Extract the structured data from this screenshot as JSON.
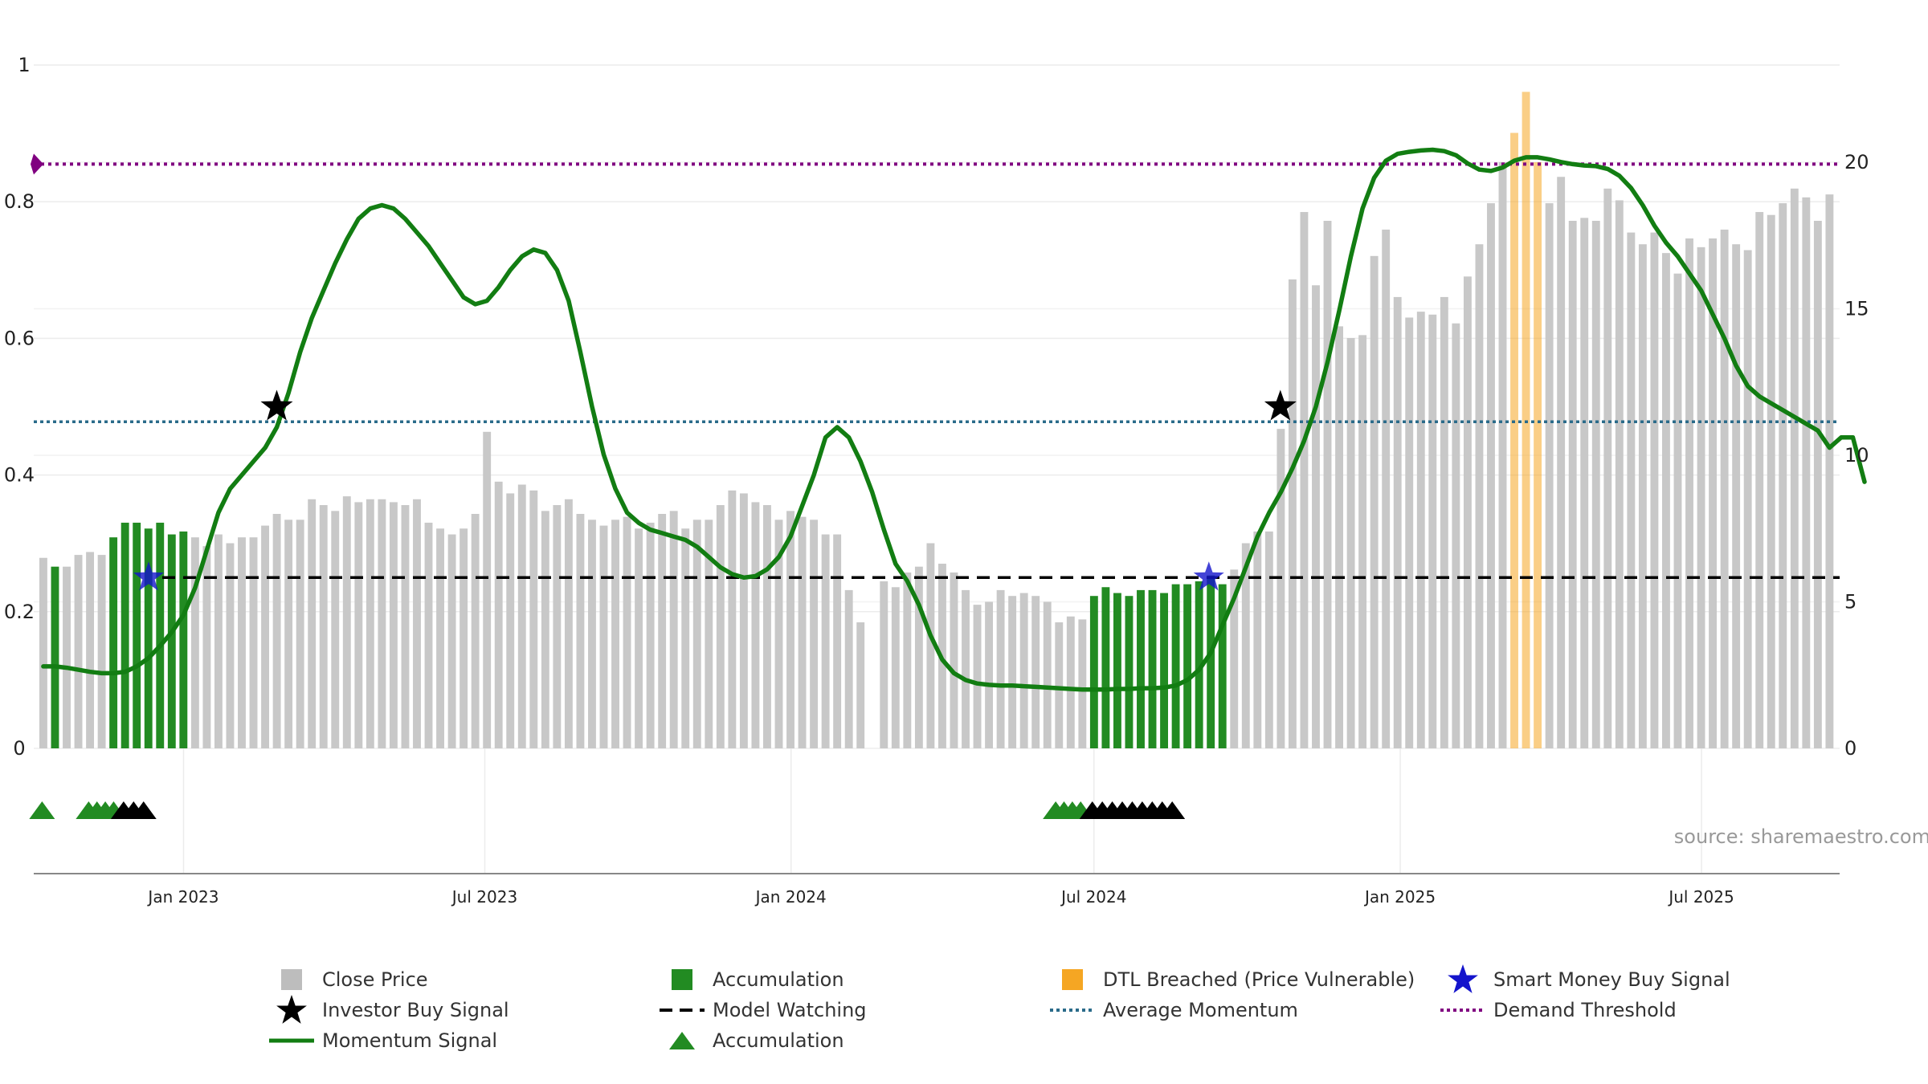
{
  "chart_data": {
    "type": "bar",
    "source_text": "source: sharemaestro.com",
    "left_axis": {
      "ticks": [
        0,
        0.2,
        0.4,
        0.6,
        0.8,
        1
      ],
      "labels": [
        "0",
        "0.2",
        "0.4",
        "0.6",
        "0.8",
        "1"
      ],
      "range": [
        0,
        1
      ]
    },
    "right_axis": {
      "ticks": [
        0,
        5,
        10,
        15,
        20
      ],
      "labels": [
        "0",
        "5",
        "10",
        "15",
        "20"
      ],
      "range": [
        0,
        23.3
      ]
    },
    "x_axis": {
      "start": "2022-10-03",
      "end": "2025-09-22",
      "ticks": [
        "2023-01-01",
        "2023-07-01",
        "2024-01-01",
        "2024-07-01",
        "2025-01-01",
        "2025-07-01"
      ],
      "labels": [
        "Jan 2023",
        "Jul 2023",
        "Jan 2024",
        "Jul 2024",
        "Jan 2025",
        "Jul 2025"
      ]
    },
    "close_price": [
      6.5,
      6.2,
      6.2,
      6.6,
      6.7,
      6.6,
      7.2,
      7.7,
      7.7,
      7.5,
      7.7,
      7.3,
      7.4,
      7.2,
      6.9,
      7.3,
      7.0,
      7.2,
      7.2,
      7.6,
      8.0,
      7.8,
      7.8,
      8.5,
      8.3,
      8.1,
      8.6,
      8.4,
      8.5,
      8.5,
      8.4,
      8.3,
      8.5,
      7.7,
      7.5,
      7.3,
      7.5,
      8.0,
      10.8,
      9.1,
      8.7,
      9.0,
      8.8,
      8.1,
      8.3,
      8.5,
      8.0,
      7.8,
      7.6,
      7.8,
      7.9,
      7.5,
      7.7,
      8.0,
      8.1,
      7.5,
      7.8,
      7.8,
      8.3,
      8.8,
      8.7,
      8.4,
      8.3,
      7.8,
      8.1,
      7.9,
      7.8,
      7.3,
      7.3,
      5.4,
      4.3,
      0.1,
      5.7,
      5.5,
      6.0,
      6.2,
      7.0,
      6.3,
      6.0,
      5.4,
      4.9,
      5.0,
      5.4,
      5.2,
      5.3,
      5.2,
      5.0,
      4.3,
      4.5,
      4.4,
      5.2,
      5.5,
      5.3,
      5.2,
      5.4,
      5.4,
      5.3,
      5.6,
      5.6,
      5.7,
      5.9,
      5.6,
      6.1,
      7.0,
      7.4,
      7.4,
      10.9,
      16.0,
      18.3,
      15.8,
      18.0,
      14.4,
      14.0,
      14.1,
      16.8,
      17.7,
      15.4,
      14.7,
      14.9,
      14.8,
      15.4,
      14.5,
      16.1,
      17.2,
      18.6,
      20.0,
      21.0,
      22.4,
      20.0,
      18.6,
      19.5,
      18.0,
      18.1,
      18.0,
      19.1,
      18.7,
      17.6,
      17.2,
      17.6,
      16.9,
      16.2,
      17.4,
      17.1,
      17.4,
      17.7,
      17.2,
      17.0,
      18.3,
      18.2,
      18.6,
      19.1,
      18.8,
      18.0,
      18.9
    ],
    "accumulation_weeks": [
      1,
      6,
      7,
      8,
      9,
      10,
      11,
      12,
      90,
      91,
      92,
      93,
      94,
      95,
      96,
      97,
      98,
      99,
      100,
      101
    ],
    "dtl_breached_weeks": [
      126,
      127,
      128
    ],
    "momentum_signal": [
      0.12,
      0.12,
      0.118,
      0.115,
      0.112,
      0.11,
      0.11,
      0.112,
      0.12,
      0.132,
      0.15,
      0.17,
      0.195,
      0.235,
      0.29,
      0.345,
      0.38,
      0.4,
      0.42,
      0.44,
      0.47,
      0.52,
      0.58,
      0.63,
      0.67,
      0.71,
      0.745,
      0.775,
      0.79,
      0.795,
      0.79,
      0.775,
      0.755,
      0.735,
      0.71,
      0.685,
      0.66,
      0.65,
      0.655,
      0.675,
      0.7,
      0.72,
      0.73,
      0.725,
      0.7,
      0.655,
      0.58,
      0.5,
      0.43,
      0.38,
      0.345,
      0.33,
      0.32,
      0.315,
      0.31,
      0.305,
      0.295,
      0.28,
      0.265,
      0.255,
      0.25,
      0.252,
      0.262,
      0.28,
      0.31,
      0.355,
      0.4,
      0.455,
      0.47,
      0.455,
      0.42,
      0.375,
      0.32,
      0.27,
      0.245,
      0.21,
      0.165,
      0.13,
      0.11,
      0.1,
      0.095,
      0.093,
      0.092,
      0.092,
      0.091,
      0.09,
      0.089,
      0.088,
      0.087,
      0.086,
      0.086,
      0.086,
      0.087,
      0.087,
      0.088,
      0.088,
      0.089,
      0.092,
      0.1,
      0.115,
      0.14,
      0.18,
      0.22,
      0.265,
      0.31,
      0.345,
      0.375,
      0.41,
      0.45,
      0.5,
      0.565,
      0.64,
      0.72,
      0.79,
      0.835,
      0.86,
      0.87,
      0.873,
      0.875,
      0.876,
      0.874,
      0.868,
      0.856,
      0.847,
      0.845,
      0.85,
      0.86,
      0.865,
      0.865,
      0.862,
      0.858,
      0.855,
      0.853,
      0.852,
      0.848,
      0.838,
      0.82,
      0.795,
      0.765,
      0.74,
      0.72,
      0.695,
      0.67,
      0.635,
      0.6,
      0.56,
      0.53,
      0.515,
      0.505,
      0.495,
      0.485,
      0.475,
      0.465,
      0.44,
      0.455,
      0.455,
      0.39
    ],
    "model_watching_level": 0.25,
    "average_momentum_level": 0.478,
    "demand_threshold_level": 0.855,
    "investor_buy_signals": [
      {
        "x": "2023-02-26",
        "y": 0.5
      },
      {
        "x": "2024-10-21",
        "y": 0.5
      }
    ],
    "smart_money_buy_signals": [
      {
        "x": "2022-12-11",
        "y": 0.25
      },
      {
        "x": "2024-09-08",
        "y": 0.25
      }
    ],
    "accumulation_markers": [
      {
        "x": "2022-10-08",
        "color": "green"
      },
      {
        "x": "2022-11-05",
        "color": "green"
      },
      {
        "x": "2022-11-10",
        "color": "green"
      },
      {
        "x": "2022-11-15",
        "color": "green"
      },
      {
        "x": "2022-11-20",
        "color": "green"
      },
      {
        "x": "2022-11-26",
        "color": "black"
      },
      {
        "x": "2022-12-02",
        "color": "black"
      },
      {
        "x": "2022-12-08",
        "color": "black"
      },
      {
        "x": "2024-06-08",
        "color": "green"
      },
      {
        "x": "2024-06-13",
        "color": "green"
      },
      {
        "x": "2024-06-18",
        "color": "green"
      },
      {
        "x": "2024-06-23",
        "color": "green"
      },
      {
        "x": "2024-06-30",
        "color": "black"
      },
      {
        "x": "2024-07-06",
        "color": "black"
      },
      {
        "x": "2024-07-12",
        "color": "black"
      },
      {
        "x": "2024-07-18",
        "color": "black"
      },
      {
        "x": "2024-07-24",
        "color": "black"
      },
      {
        "x": "2024-07-30",
        "color": "black"
      },
      {
        "x": "2024-08-05",
        "color": "black"
      },
      {
        "x": "2024-08-11",
        "color": "black"
      },
      {
        "x": "2024-08-17",
        "color": "black"
      }
    ],
    "demand_threshold_marker": true,
    "colors": {
      "close_price": "#c8c8c8",
      "accumulation": "#228b22",
      "dtl_breached": "#f5a623",
      "momentum": "#127d12",
      "model_watching": "#000000",
      "average_momentum": "#2a6b8a",
      "demand_threshold": "#800080",
      "smart_money": "#1414cc",
      "investor": "#000000"
    },
    "legend": [
      {
        "label": "Close Price",
        "symbol": "square",
        "color": "#bdbdbd"
      },
      {
        "label": "Accumulation",
        "symbol": "square",
        "color": "#228b22"
      },
      {
        "label": "DTL Breached (Price Vulnerable)",
        "symbol": "square",
        "color": "#f5a623"
      },
      {
        "label": "Smart Money Buy Signal",
        "symbol": "star",
        "color": "#1414cc"
      },
      {
        "label": "Investor Buy Signal",
        "symbol": "star",
        "color": "#000000"
      },
      {
        "label": "Model Watching",
        "symbol": "dash",
        "color": "#000000"
      },
      {
        "label": "Average Momentum",
        "symbol": "dot",
        "color": "#2a6b8a"
      },
      {
        "label": "Demand Threshold",
        "symbol": "dot",
        "color": "#800080"
      },
      {
        "label": "Momentum Signal",
        "symbol": "line",
        "color": "#127d12"
      },
      {
        "label": "Accumulation",
        "symbol": "triangle",
        "color": "#228b22"
      }
    ],
    "legend_placement": "bottom",
    "grid": true
  }
}
